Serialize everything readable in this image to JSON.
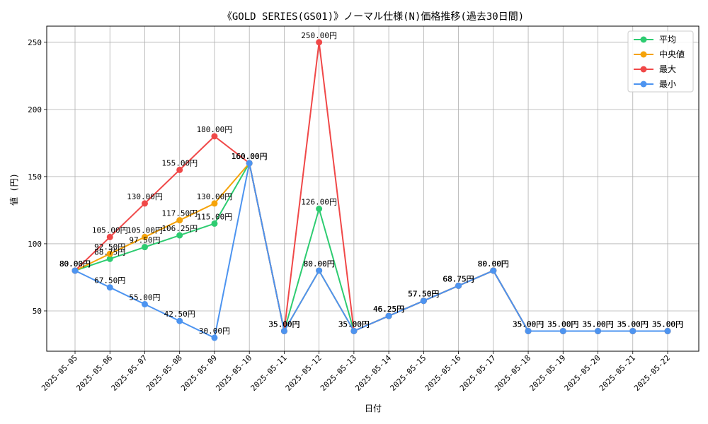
{
  "chart_data": {
    "type": "line",
    "title": "《GOLD SERIES(GS01)》ノーマル仕様(N)価格推移(過去30日間)",
    "xlabel": "日付",
    "ylabel": "値 (円)",
    "ylim": [
      20,
      262
    ],
    "yticks": [
      50,
      100,
      150,
      200,
      250
    ],
    "grid": true,
    "legend_position": "top-right",
    "label_suffix": "円",
    "categories": [
      "2025-05-05",
      "2025-05-06",
      "2025-05-07",
      "2025-05-08",
      "2025-05-09",
      "2025-05-10",
      "2025-05-11",
      "2025-05-12",
      "2025-05-13",
      "2025-05-14",
      "2025-05-15",
      "2025-05-16",
      "2025-05-17",
      "2025-05-18",
      "2025-05-19",
      "2025-05-20",
      "2025-05-21",
      "2025-05-22"
    ],
    "series": [
      {
        "name": "平均",
        "color": "#2ecc71",
        "values": [
          80,
          88.75,
          97.5,
          106.25,
          115,
          160,
          35,
          126,
          35,
          46.25,
          57.5,
          68.75,
          80,
          35,
          35,
          35,
          35,
          35
        ]
      },
      {
        "name": "中央値",
        "color": "#f5a30a",
        "values": [
          80,
          92.5,
          105,
          117.5,
          130,
          160,
          35,
          80,
          35,
          46.25,
          57.5,
          68.75,
          80,
          35,
          35,
          35,
          35,
          35
        ]
      },
      {
        "name": "最大",
        "color": "#f04848",
        "values": [
          80,
          105,
          130,
          155,
          180,
          160,
          35,
          250,
          35,
          46.25,
          57.5,
          68.75,
          80,
          35,
          35,
          35,
          35,
          35
        ]
      },
      {
        "name": "最小",
        "color": "#4d94f0",
        "values": [
          80,
          67.5,
          55,
          42.5,
          30,
          160,
          35,
          80,
          35,
          46.25,
          57.5,
          68.75,
          80,
          35,
          35,
          35,
          35,
          35
        ]
      }
    ]
  }
}
